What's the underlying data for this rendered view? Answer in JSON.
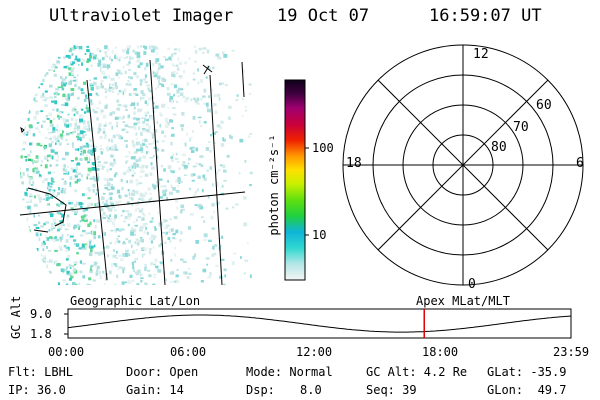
{
  "header": {
    "instrument": "Ultraviolet Imager",
    "date": "19 Oct 07",
    "time": "16:59:07 UT"
  },
  "colorbar": {
    "unit_label": "photon cm⁻²s⁻¹",
    "ticks": [
      "100",
      "10"
    ]
  },
  "polar_plot": {
    "mlt_labels": {
      "top": "12",
      "left": "18",
      "right": "6",
      "bottom": "0"
    },
    "lat_labels": [
      "60",
      "70",
      "80"
    ]
  },
  "timeline": {
    "left_label": "Geographic Lat/Lon",
    "right_label": "Apex MLat/MLT",
    "axis_label": "GC Alt",
    "y_ticks": [
      "9.0",
      "1.8"
    ],
    "x_ticks": [
      "00:00",
      "06:00",
      "12:00",
      "18:00",
      "23:59"
    ],
    "current_time_marker_color": "#e00000",
    "chart_data": {
      "type": "line",
      "x_range": [
        "00:00",
        "23:59"
      ],
      "y_range": [
        1.8,
        9.0
      ],
      "current_time": "16:59:07"
    }
  },
  "status": {
    "flt": "Flt: LBHL",
    "door": "Door: Open",
    "mode": "Mode: Normal",
    "gc_alt": "GC Alt: 4.2 Re",
    "glat": "GLat: -35.9",
    "ip": "IP: 36.0",
    "gain": "Gain: 14",
    "dsp_label": "Dsp:",
    "dsp_value": "8.0",
    "seq": "Seq: 39",
    "glon": "GLon:  49.7"
  }
}
